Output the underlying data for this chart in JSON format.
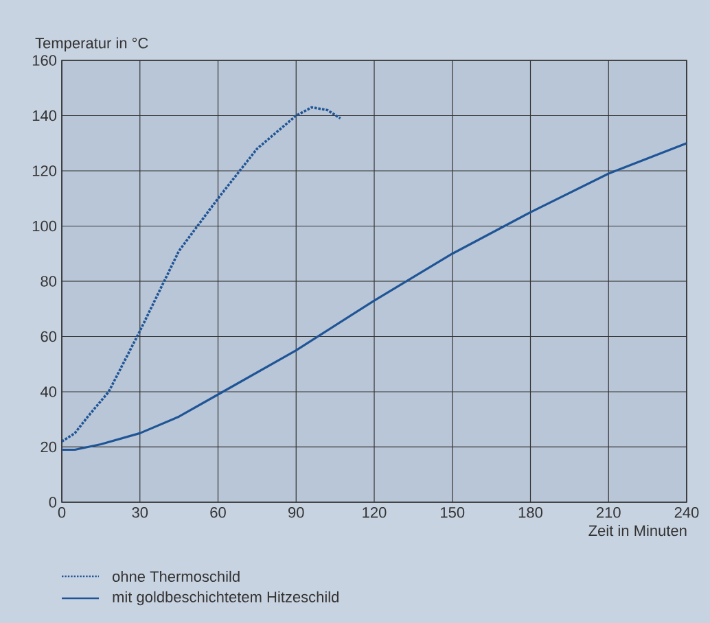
{
  "chart_data": {
    "type": "line",
    "xlabel": "Zeit in Minuten",
    "ylabel": "Temperatur in °C",
    "xlim": [
      0,
      240
    ],
    "xticks": [
      0,
      30,
      60,
      90,
      120,
      150,
      180,
      210,
      240
    ],
    "ylim": [
      0,
      160
    ],
    "yticks": [
      0,
      20,
      40,
      60,
      80,
      100,
      120,
      140,
      160
    ],
    "grid": true,
    "legend": "bottom left",
    "series": [
      {
        "name": "ohne Thermoschild",
        "color": "#1f5596",
        "line_style": "dotted",
        "x": [
          0,
          5,
          10,
          18,
          30,
          45,
          60,
          75,
          90,
          96,
          102,
          107
        ],
        "values": [
          22,
          25,
          31,
          40,
          62,
          91,
          110,
          128,
          140,
          143,
          142,
          139
        ]
      },
      {
        "name": "mit goldbeschichtetem Hitzeschild",
        "color": "#1f5596",
        "line_style": "solid",
        "x": [
          0,
          5,
          15,
          30,
          45,
          60,
          90,
          120,
          150,
          180,
          210,
          240
        ],
        "values": [
          19,
          19,
          21,
          25,
          31,
          39,
          55,
          73,
          90,
          105,
          119,
          130
        ]
      }
    ]
  }
}
